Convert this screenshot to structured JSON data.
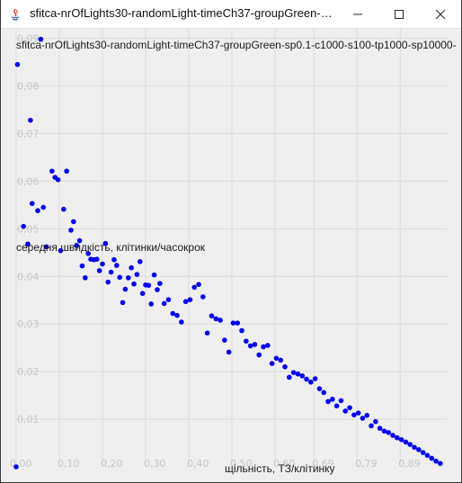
{
  "window": {
    "title": "sfitca-nrOfLights30-randomLight-timeCh37-groupGreen-sp0....",
    "controls": [
      "minimize",
      "maximize",
      "close"
    ]
  },
  "colors": {
    "background": "#efefef",
    "grid": "#dcdcdc",
    "point": "#0000ee",
    "tick_label": "#c4c4c4"
  },
  "chart_data": {
    "type": "scatter",
    "title": "sfitca-nrOfLights30-randomLight-timeCh37-groupGreen-sp0.1-c1000-s100-tp1000-sp10000-",
    "xlabel": "щільність, ТЗ/клітинку",
    "ylabel": "середня швидкість, клітинки/часокрок",
    "x_ticks": [
      "0,00",
      "0,10",
      "0,20",
      "0,30",
      "0,40",
      "0,50",
      "0,60",
      "0,69",
      "0,79",
      "0,89"
    ],
    "y_ticks": [
      "0,01",
      "0,02",
      "0,03",
      "0,04",
      "0,05",
      "0,06",
      "0,07",
      "0,08",
      "0,09"
    ],
    "xlim": [
      0.0,
      1.0
    ],
    "ylim": [
      0.0,
      0.092
    ],
    "grid": true,
    "legend": "none",
    "points": [
      [
        0.0,
        0.0
      ],
      [
        0.003,
        0.0845
      ],
      [
        0.01,
        0.097
      ],
      [
        0.017,
        0.0505
      ],
      [
        0.023,
        0.0935
      ],
      [
        0.027,
        0.0468
      ],
      [
        0.033,
        0.0728
      ],
      [
        0.037,
        0.0553
      ],
      [
        0.05,
        0.0538
      ],
      [
        0.057,
        0.0898
      ],
      [
        0.063,
        0.0545
      ],
      [
        0.07,
        0.0462
      ],
      [
        0.083,
        0.0621
      ],
      [
        0.09,
        0.0608
      ],
      [
        0.097,
        0.0603
      ],
      [
        0.103,
        0.0454
      ],
      [
        0.11,
        0.0541
      ],
      [
        0.117,
        0.0621
      ],
      [
        0.127,
        0.0497
      ],
      [
        0.133,
        0.0515
      ],
      [
        0.14,
        0.0465
      ],
      [
        0.147,
        0.0475
      ],
      [
        0.153,
        0.0422
      ],
      [
        0.16,
        0.0397
      ],
      [
        0.167,
        0.0448
      ],
      [
        0.173,
        0.0436
      ],
      [
        0.18,
        0.0435
      ],
      [
        0.187,
        0.0436
      ],
      [
        0.193,
        0.0412
      ],
      [
        0.2,
        0.0426
      ],
      [
        0.207,
        0.0469
      ],
      [
        0.213,
        0.0388
      ],
      [
        0.22,
        0.0409
      ],
      [
        0.227,
        0.0435
      ],
      [
        0.233,
        0.0423
      ],
      [
        0.24,
        0.0398
      ],
      [
        0.247,
        0.0345
      ],
      [
        0.253,
        0.0373
      ],
      [
        0.26,
        0.0397
      ],
      [
        0.267,
        0.0418
      ],
      [
        0.273,
        0.0384
      ],
      [
        0.28,
        0.0404
      ],
      [
        0.287,
        0.0431
      ],
      [
        0.293,
        0.0364
      ],
      [
        0.3,
        0.0382
      ],
      [
        0.307,
        0.0381
      ],
      [
        0.313,
        0.0342
      ],
      [
        0.32,
        0.0403
      ],
      [
        0.327,
        0.0372
      ],
      [
        0.333,
        0.0385
      ],
      [
        0.343,
        0.0343
      ],
      [
        0.353,
        0.0351
      ],
      [
        0.363,
        0.0322
      ],
      [
        0.373,
        0.0318
      ],
      [
        0.383,
        0.0304
      ],
      [
        0.393,
        0.0347
      ],
      [
        0.403,
        0.0351
      ],
      [
        0.413,
        0.0377
      ],
      [
        0.423,
        0.0383
      ],
      [
        0.433,
        0.0357
      ],
      [
        0.443,
        0.0281
      ],
      [
        0.453,
        0.0317
      ],
      [
        0.463,
        0.0311
      ],
      [
        0.473,
        0.0308
      ],
      [
        0.483,
        0.0266
      ],
      [
        0.493,
        0.0241
      ],
      [
        0.503,
        0.0302
      ],
      [
        0.513,
        0.0302
      ],
      [
        0.523,
        0.0286
      ],
      [
        0.533,
        0.0264
      ],
      [
        0.543,
        0.0254
      ],
      [
        0.553,
        0.0257
      ],
      [
        0.563,
        0.0235
      ],
      [
        0.573,
        0.0252
      ],
      [
        0.583,
        0.0255
      ],
      [
        0.593,
        0.0217
      ],
      [
        0.603,
        0.0228
      ],
      [
        0.613,
        0.0224
      ],
      [
        0.623,
        0.021
      ],
      [
        0.633,
        0.0188
      ],
      [
        0.643,
        0.0198
      ],
      [
        0.653,
        0.0195
      ],
      [
        0.663,
        0.0191
      ],
      [
        0.673,
        0.0184
      ],
      [
        0.683,
        0.0178
      ],
      [
        0.693,
        0.0185
      ],
      [
        0.703,
        0.0164
      ],
      [
        0.713,
        0.0156
      ],
      [
        0.723,
        0.0137
      ],
      [
        0.733,
        0.0142
      ],
      [
        0.743,
        0.0128
      ],
      [
        0.753,
        0.0139
      ],
      [
        0.763,
        0.0117
      ],
      [
        0.773,
        0.0124
      ],
      [
        0.783,
        0.0109
      ],
      [
        0.793,
        0.0113
      ],
      [
        0.803,
        0.0102
      ],
      [
        0.813,
        0.0108
      ],
      [
        0.823,
        0.0086
      ],
      [
        0.833,
        0.0095
      ],
      [
        0.843,
        0.0081
      ],
      [
        0.853,
        0.0075
      ],
      [
        0.863,
        0.0072
      ],
      [
        0.873,
        0.0066
      ],
      [
        0.883,
        0.0061
      ],
      [
        0.893,
        0.0057
      ],
      [
        0.903,
        0.0052
      ],
      [
        0.913,
        0.0047
      ],
      [
        0.923,
        0.0041
      ],
      [
        0.933,
        0.0036
      ],
      [
        0.943,
        0.003
      ],
      [
        0.953,
        0.0024
      ],
      [
        0.963,
        0.0018
      ],
      [
        0.973,
        0.0012
      ],
      [
        0.983,
        0.0007
      ]
    ]
  }
}
